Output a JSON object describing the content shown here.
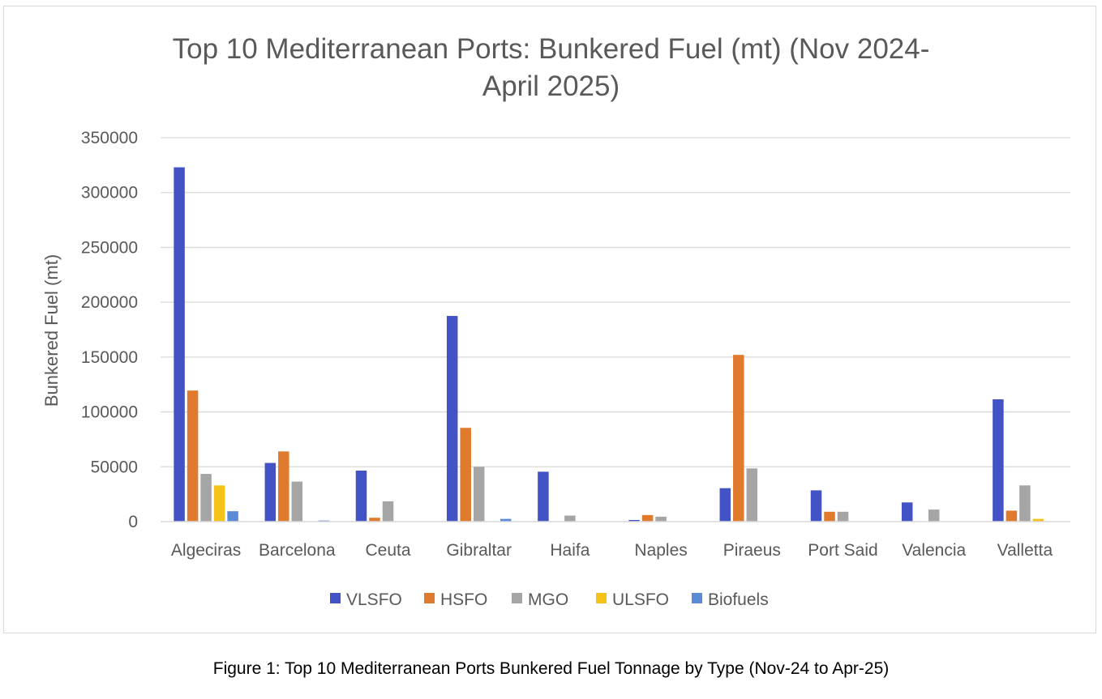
{
  "chart_data": {
    "type": "bar",
    "title_line1": "Top 10 Mediterranean Ports: Bunkered Fuel (mt) (Nov 2024-",
    "title_line2": "April 2025)",
    "xlabel": "",
    "ylabel": "Bunkered Fuel (mt)",
    "ylim": [
      0,
      350000
    ],
    "yticks": [
      "0",
      "50000",
      "100000",
      "150000",
      "200000",
      "250000",
      "300000",
      "350000"
    ],
    "grid": true,
    "legend_position": "bottom",
    "categories": [
      "Algeciras",
      "Barcelona",
      "Ceuta",
      "Gibraltar",
      "Haifa",
      "Naples",
      "Piraeus",
      "Port Said",
      "Valencia",
      "Valletta"
    ],
    "series": [
      {
        "name": "VLSFO",
        "color": "#4352c4",
        "values": [
          323000,
          53500,
          46500,
          187500,
          45500,
          1500,
          30500,
          28500,
          17500,
          111500
        ]
      },
      {
        "name": "HSFO",
        "color": "#e07a2d",
        "values": [
          119500,
          64000,
          3500,
          85500,
          0,
          6000,
          152000,
          9000,
          0,
          10000
        ]
      },
      {
        "name": "MGO",
        "color": "#a5a5a5",
        "values": [
          43500,
          36500,
          18500,
          50000,
          5500,
          4500,
          48500,
          9000,
          11000,
          33000
        ]
      },
      {
        "name": "ULSFO",
        "color": "#f5c218",
        "values": [
          33000,
          0,
          0,
          0,
          0,
          0,
          0,
          0,
          0,
          2500
        ]
      },
      {
        "name": "Biofuels",
        "color": "#5b8ad6",
        "values": [
          9500,
          1000,
          0,
          2500,
          0,
          0,
          0,
          0,
          0,
          0
        ]
      }
    ]
  },
  "caption": "Figure 1: Top 10 Mediterranean Ports Bunkered Fuel Tonnage by Type (Nov-24 to Apr-25)"
}
